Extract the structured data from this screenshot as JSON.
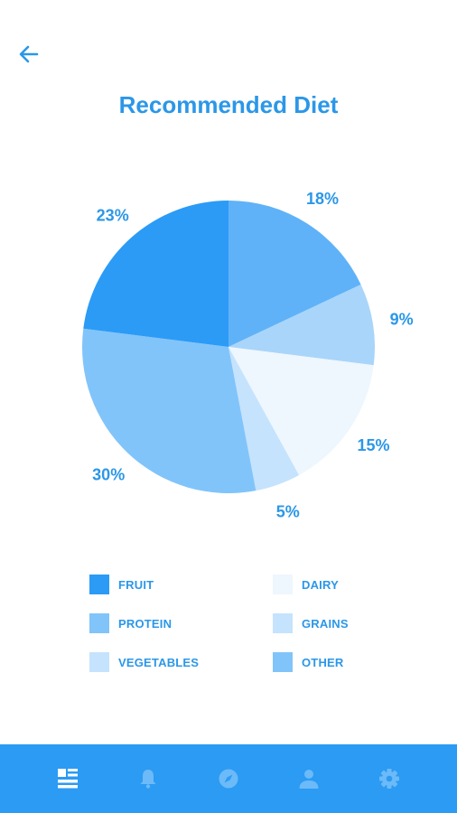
{
  "header": {
    "back_icon": "arrow-left-icon",
    "title": "Recommended Diet"
  },
  "chart_data": {
    "type": "pie",
    "title": "Recommended Diet",
    "slices": [
      {
        "label": "",
        "value": 18,
        "display": "18%",
        "color": "#5fb2f7"
      },
      {
        "label": "",
        "value": 9,
        "display": "9%",
        "color": "#a9d5fa"
      },
      {
        "label": "",
        "value": 15,
        "display": "15%",
        "color": "#eef6fe"
      },
      {
        "label": "",
        "value": 5,
        "display": "5%",
        "color": "#c5e3fc"
      },
      {
        "label": "",
        "value": 30,
        "display": "30%",
        "color": "#81c4fa"
      },
      {
        "label": "",
        "value": 23,
        "display": "23%",
        "color": "#2b9bf6"
      }
    ],
    "legend": [
      {
        "label": "FRUIT",
        "color": "#2b9bf6"
      },
      {
        "label": "DAIRY",
        "color": "#eef6fe"
      },
      {
        "label": "PROTEIN",
        "color": "#81c4fa"
      },
      {
        "label": "GRAINS",
        "color": "#c5e3fc"
      },
      {
        "label": "VEGETABLES",
        "color": "#c5e3fc"
      },
      {
        "label": "OTHER",
        "color": "#81c4fa"
      }
    ],
    "label_color": "#2b97e8"
  },
  "tabbar": {
    "background": "#2b9bf4",
    "tabs": [
      {
        "icon": "dashboard-icon",
        "active": true
      },
      {
        "icon": "bell-icon",
        "active": false
      },
      {
        "icon": "compass-icon",
        "active": false
      },
      {
        "icon": "user-icon",
        "active": false
      },
      {
        "icon": "gear-icon",
        "active": false
      }
    ]
  }
}
